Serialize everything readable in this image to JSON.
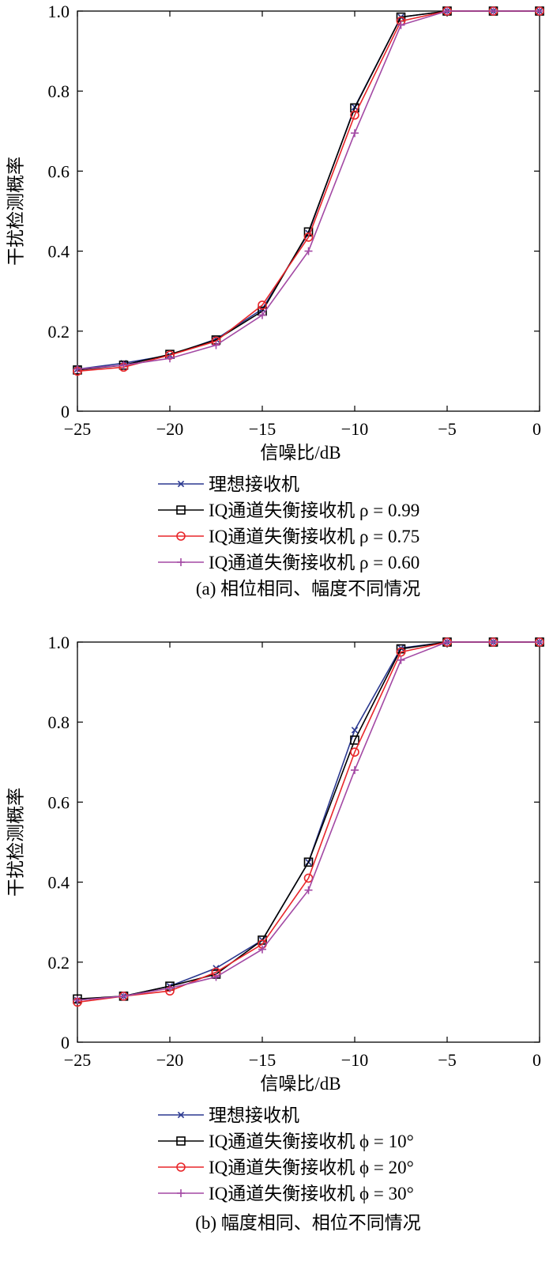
{
  "chart_data": [
    {
      "type": "line",
      "panel": "a",
      "caption": "(a) 相位相同、幅度不同情况",
      "xlabel": "信噪比/dB",
      "ylabel": "干扰检测概率",
      "xlim": [
        -25,
        0
      ],
      "ylim": [
        0,
        1.0
      ],
      "xticks": [
        -25,
        -20,
        -15,
        -10,
        -5,
        0
      ],
      "xtick_labels": [
        "−25",
        "−20",
        "−15",
        "−10",
        "−5",
        "0"
      ],
      "yticks": [
        0,
        0.2,
        0.4,
        0.6,
        0.8,
        1.0
      ],
      "ytick_labels": [
        "0",
        "0.2",
        "0.4",
        "0.6",
        "0.8",
        "1.0"
      ],
      "grid": false,
      "legend_position": "below-plot",
      "x": [
        -25,
        -22.5,
        -20,
        -17.5,
        -15,
        -12.5,
        -10,
        -7.5,
        -5,
        -2.5,
        0
      ],
      "series": [
        {
          "name": "理想接收机",
          "color": "#2b3990",
          "marker": "x",
          "values": [
            0.105,
            0.12,
            0.14,
            0.18,
            0.255,
            0.445,
            0.76,
            0.985,
            1.0,
            1.0,
            1.0
          ]
        },
        {
          "name": "IQ通道失衡接收机 ρ = 0.99",
          "color": "#000000",
          "marker": "square",
          "values": [
            0.103,
            0.115,
            0.142,
            0.178,
            0.25,
            0.448,
            0.758,
            0.985,
            1.0,
            1.0,
            1.0
          ]
        },
        {
          "name": "IQ通道失衡接收机 ρ = 0.75",
          "color": "#e8262a",
          "marker": "circle",
          "values": [
            0.1,
            0.11,
            0.14,
            0.175,
            0.265,
            0.435,
            0.74,
            0.975,
            1.0,
            1.0,
            1.0
          ]
        },
        {
          "name": "IQ通道失衡接收机 ρ = 0.60",
          "color": "#a349a4",
          "marker": "plus",
          "values": [
            0.105,
            0.115,
            0.132,
            0.165,
            0.24,
            0.4,
            0.695,
            0.965,
            1.0,
            1.0,
            1.0
          ]
        }
      ]
    },
    {
      "type": "line",
      "panel": "b",
      "caption": "(b) 幅度相同、相位不同情况",
      "xlabel": "信噪比/dB",
      "ylabel": "干扰检测概率",
      "xlim": [
        -25,
        0
      ],
      "ylim": [
        0,
        1.0
      ],
      "xticks": [
        -25,
        -20,
        -15,
        -10,
        -5,
        0
      ],
      "xtick_labels": [
        "−25",
        "−20",
        "−15",
        "−10",
        "−5",
        "0"
      ],
      "yticks": [
        0,
        0.2,
        0.4,
        0.6,
        0.8,
        1.0
      ],
      "ytick_labels": [
        "0",
        "0.2",
        "0.4",
        "0.6",
        "0.8",
        "1.0"
      ],
      "grid": false,
      "legend_position": "below-plot",
      "x": [
        -25,
        -22.5,
        -20,
        -17.5,
        -15,
        -12.5,
        -10,
        -7.5,
        -5,
        -2.5,
        0
      ],
      "series": [
        {
          "name": "理想接收机",
          "color": "#2b3990",
          "marker": "x",
          "values": [
            0.105,
            0.115,
            0.14,
            0.185,
            0.255,
            0.45,
            0.78,
            0.985,
            1.0,
            1.0,
            1.0
          ]
        },
        {
          "name": "IQ通道失衡接收机 ϕ = 10°",
          "color": "#000000",
          "marker": "square",
          "values": [
            0.108,
            0.115,
            0.14,
            0.17,
            0.255,
            0.45,
            0.755,
            0.983,
            1.0,
            1.0,
            1.0
          ]
        },
        {
          "name": "IQ通道失衡接收机 ϕ = 20°",
          "color": "#e8262a",
          "marker": "circle",
          "values": [
            0.1,
            0.115,
            0.128,
            0.175,
            0.245,
            0.41,
            0.725,
            0.975,
            1.0,
            1.0,
            1.0
          ]
        },
        {
          "name": "IQ通道失衡接收机 ϕ = 30°",
          "color": "#a349a4",
          "marker": "plus",
          "values": [
            0.105,
            0.115,
            0.135,
            0.163,
            0.232,
            0.38,
            0.68,
            0.955,
            1.0,
            1.0,
            1.0
          ]
        }
      ]
    }
  ]
}
